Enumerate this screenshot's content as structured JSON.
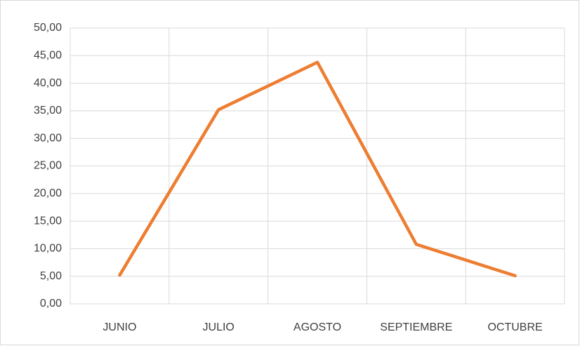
{
  "chart_data": {
    "type": "line",
    "categories": [
      "JUNIO",
      "JULIO",
      "AGOSTO",
      "SEPTIEMBRE",
      "OCTUBRE"
    ],
    "series": [
      {
        "name": null,
        "color": "#ed7d31",
        "values": [
          5.2,
          35.2,
          43.8,
          10.8,
          5.1
        ]
      }
    ],
    "ylim": [
      0,
      50
    ],
    "yticks": [
      {
        "value": 0,
        "label": "0,00"
      },
      {
        "value": 5,
        "label": "5,00"
      },
      {
        "value": 10,
        "label": "10,00"
      },
      {
        "value": 15,
        "label": "15,00"
      },
      {
        "value": 20,
        "label": "20,00"
      },
      {
        "value": 25,
        "label": "25,00"
      },
      {
        "value": 30,
        "label": "30,00"
      },
      {
        "value": 35,
        "label": "35,00"
      },
      {
        "value": 40,
        "label": "40,00"
      },
      {
        "value": 45,
        "label": "45,00"
      },
      {
        "value": 50,
        "label": "50,00"
      }
    ],
    "grid": true
  }
}
